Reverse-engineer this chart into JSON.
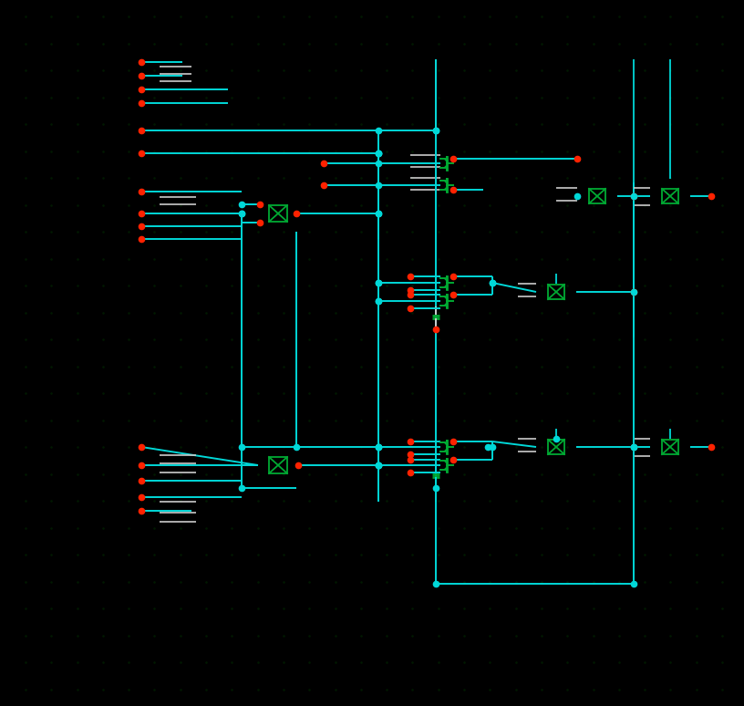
{
  "bg_color": "#000000",
  "wire_color": "#00d8d8",
  "pin_color": "#ff2200",
  "component_color": "#00aa33",
  "white_color": "#cccccc",
  "figsize": [
    8.16,
    7.74
  ],
  "dpi": 100
}
